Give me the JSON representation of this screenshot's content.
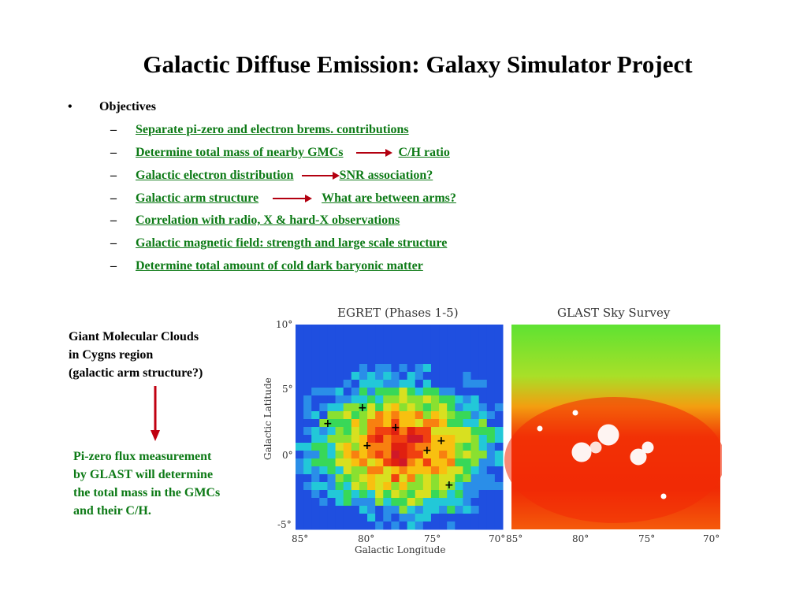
{
  "slide": {
    "title": "Galactic Diffuse Emission: Galaxy Simulator Project",
    "bullet": "•",
    "objectives_label": "Objectives",
    "dash": "–",
    "items": [
      {
        "text": "Separate pi-zero and electron brems. contributions"
      },
      {
        "text": "Determine total mass of nearby GMCs",
        "arrow_target": "C/H ratio"
      },
      {
        "text": "Galactic electron distribution",
        "arrow_target": "SNR association?"
      },
      {
        "text": "Galactic arm structure",
        "arrow_target": "What are between arms?"
      },
      {
        "text": "Correlation with radio, X & hard-X observations"
      },
      {
        "text": "Galactic magnetic field: strength and large scale structure"
      },
      {
        "text": "Determine total amount of cold dark baryonic matter"
      }
    ],
    "gmc_caption": [
      "Giant Molecular Clouds",
      "in Cygns region",
      "(galactic arm structure?)"
    ],
    "pizero_caption": [
      "Pi-zero flux measurement",
      "by GLAST will determine",
      "the total mass in the GMCs",
      "and their C/H."
    ],
    "colors": {
      "link": "#0d7a16",
      "arrow": "#b30010"
    }
  },
  "figure": {
    "left_panel_title": "EGRET (Phases 1-5)",
    "right_panel_title": "GLAST Sky Survey",
    "y_axis_label": "Galactic Latitude",
    "x_axis_label": "Galactic Longitude",
    "y_ticks": [
      "10°",
      "5°",
      "0°",
      "-5°"
    ],
    "x_ticks_left": [
      "85°",
      "80°",
      "75°",
      "70°"
    ],
    "x_ticks_right": [
      "85°",
      "80°",
      "75°",
      "70°"
    ]
  }
}
